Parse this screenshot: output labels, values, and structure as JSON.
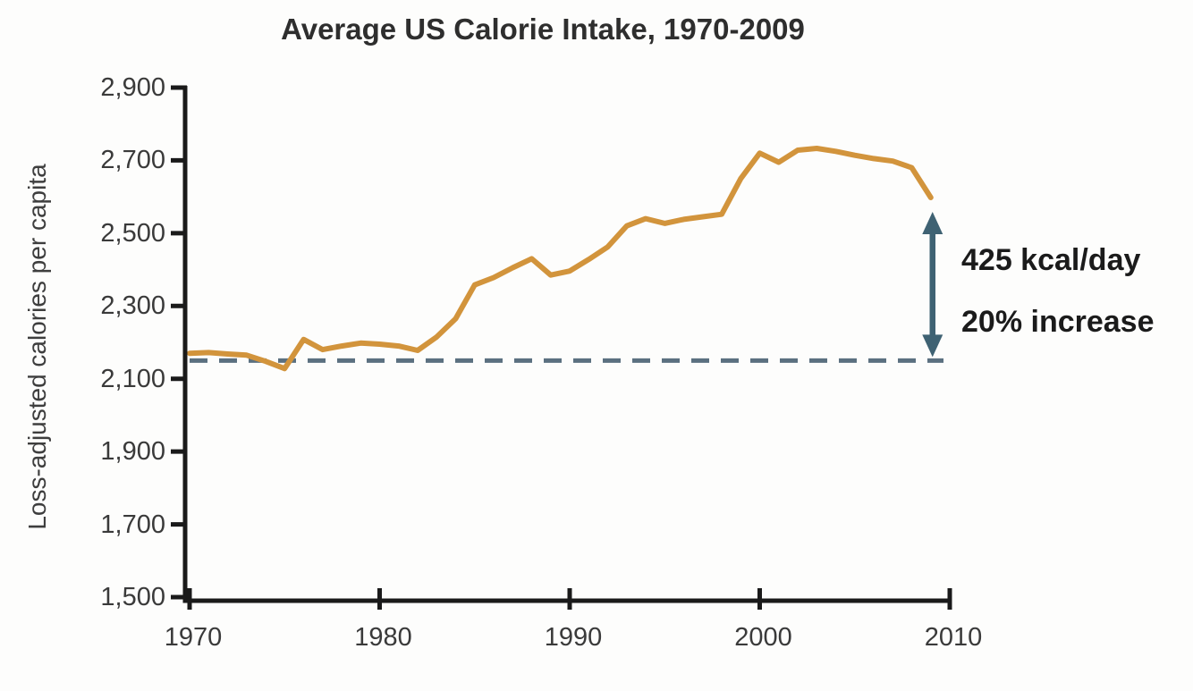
{
  "title": "Average US Calorie Intake, 1970-2009",
  "y_axis_title": "Loss-adjusted calories per capita",
  "annotation": {
    "line1": "425 kcal/day",
    "line2": "20% increase"
  },
  "colors": {
    "data_line": "#D2943C",
    "baseline_dashed": "#5B7080",
    "arrow": "#3F6273",
    "axis": "#1a1a1a",
    "tick_text": "#3a3a3a",
    "title_text": "#2e2e2e"
  },
  "chart_data": {
    "type": "line",
    "title": "Average US Calorie Intake, 1970-2009",
    "xlabel": "",
    "ylabel": "Loss-adjusted calories per capita",
    "xlim": [
      1970,
      2010
    ],
    "ylim": [
      1500,
      2900
    ],
    "grid": false,
    "legend": false,
    "x_ticks": [
      1970,
      1980,
      1990,
      2000,
      2010
    ],
    "x_tick_labels": [
      "1970",
      "1980",
      "1990",
      "2000",
      "2010"
    ],
    "y_ticks": [
      1500,
      1700,
      1900,
      2100,
      2300,
      2500,
      2700,
      2900
    ],
    "y_tick_labels": [
      "1,500",
      "1,700",
      "1,900",
      "2,100",
      "2,300",
      "2,500",
      "2,700",
      "2,900"
    ],
    "x": [
      1970,
      1971,
      1972,
      1973,
      1974,
      1975,
      1976,
      1977,
      1978,
      1979,
      1980,
      1981,
      1982,
      1983,
      1984,
      1985,
      1986,
      1987,
      1988,
      1989,
      1990,
      1991,
      1992,
      1993,
      1994,
      1995,
      1996,
      1997,
      1998,
      1999,
      2000,
      2001,
      2002,
      2003,
      2004,
      2005,
      2006,
      2007,
      2008,
      2009
    ],
    "series": [
      {
        "name": "Loss-adjusted calories per capita",
        "values": [
          2170,
          2172,
          2168,
          2165,
          2148,
          2128,
          2208,
          2180,
          2190,
          2198,
          2195,
          2190,
          2178,
          2215,
          2265,
          2358,
          2378,
          2405,
          2430,
          2385,
          2396,
          2428,
          2462,
          2520,
          2540,
          2527,
          2538,
          2545,
          2552,
          2650,
          2720,
          2695,
          2728,
          2733,
          2725,
          2714,
          2705,
          2698,
          2680,
          2598
        ]
      }
    ],
    "baseline_dashed_value": 2150,
    "annotations": [
      {
        "text": "425 kcal/day",
        "about": "difference between 2009 level and 1970s baseline, marked with vertical double arrow at x=2009"
      },
      {
        "text": "20% increase",
        "about": "relative growth vs baseline"
      }
    ]
  }
}
